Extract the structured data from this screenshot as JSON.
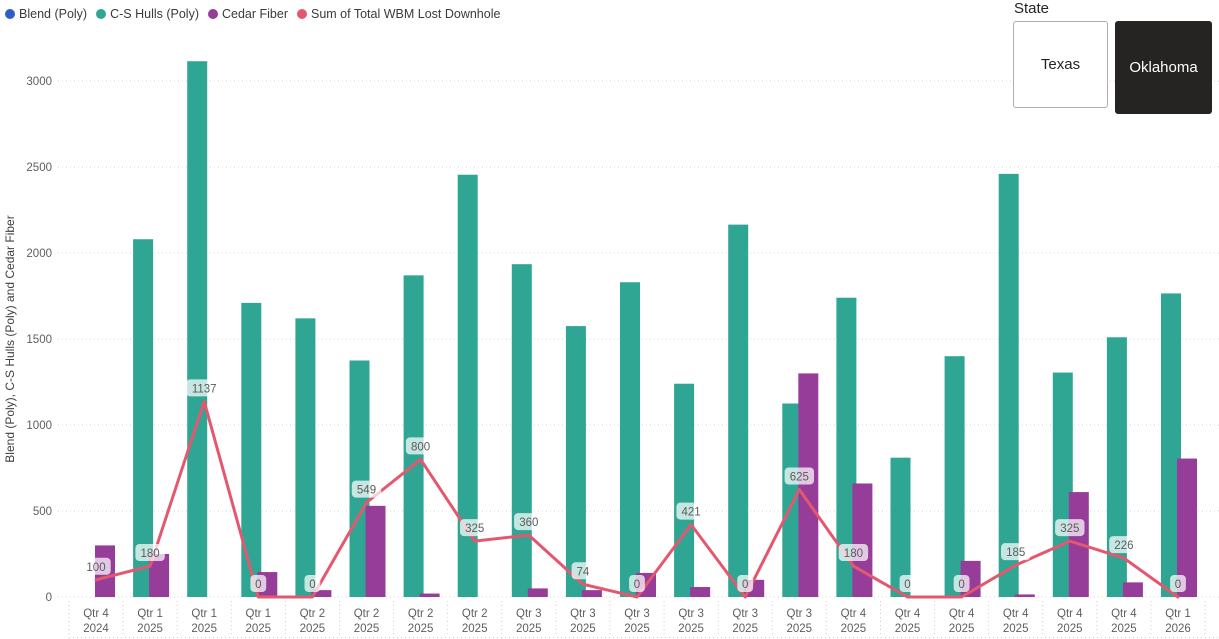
{
  "legend": {
    "items": [
      {
        "label": "Blend (Poly)",
        "color": "#2E5FC8"
      },
      {
        "label": "C-S Hulls (Poly)",
        "color": "#2FA694"
      },
      {
        "label": "Cedar Fiber",
        "color": "#963D99"
      },
      {
        "label": "Sum of Total WBM Lost Downhole",
        "color": "#E4586F"
      }
    ]
  },
  "slicer": {
    "title": "State",
    "options": [
      {
        "label": "Texas",
        "selected": false
      },
      {
        "label": "Oklahoma",
        "selected": true
      }
    ]
  },
  "chart_data": {
    "type": "bar",
    "subtype": "clustered-column-with-line",
    "title": "",
    "xlabel": "",
    "ylabel": "Blend (Poly), C-S Hulls (Poly) and Cedar Fiber",
    "ylim": [
      0,
      3000
    ],
    "yticks": [
      0,
      500,
      1000,
      1500,
      2000,
      2500,
      3000
    ],
    "grid": true,
    "legend_position": "top-left",
    "categories": [
      [
        "Qtr 4",
        "2024"
      ],
      [
        "Qtr 1",
        "2025"
      ],
      [
        "Qtr 1",
        "2025"
      ],
      [
        "Qtr 1",
        "2025"
      ],
      [
        "Qtr 2",
        "2025"
      ],
      [
        "Qtr 2",
        "2025"
      ],
      [
        "Qtr 2",
        "2025"
      ],
      [
        "Qtr 2",
        "2025"
      ],
      [
        "Qtr 3",
        "2025"
      ],
      [
        "Qtr 3",
        "2025"
      ],
      [
        "Qtr 3",
        "2025"
      ],
      [
        "Qtr 3",
        "2025"
      ],
      [
        "Qtr 3",
        "2025"
      ],
      [
        "Qtr 3",
        "2025"
      ],
      [
        "Qtr 4",
        "2025"
      ],
      [
        "Qtr 4",
        "2025"
      ],
      [
        "Qtr 4",
        "2025"
      ],
      [
        "Qtr 4",
        "2025"
      ],
      [
        "Qtr 4",
        "2025"
      ],
      [
        "Qtr 4",
        "2025"
      ],
      [
        "Qtr 1",
        "2026"
      ]
    ],
    "series": [
      {
        "name": "Blend (Poly)",
        "type": "bar",
        "color": "#2E5FC8",
        "values": [
          0,
          0,
          0,
          0,
          0,
          0,
          0,
          0,
          0,
          0,
          0,
          0,
          0,
          0,
          0,
          0,
          0,
          0,
          0,
          0,
          0
        ]
      },
      {
        "name": "C-S Hulls (Poly)",
        "type": "bar",
        "color": "#2FA694",
        "values": [
          0,
          2080,
          3115,
          1710,
          1620,
          1375,
          1870,
          2455,
          1935,
          1575,
          1830,
          1240,
          2165,
          1125,
          1740,
          810,
          1400,
          2460,
          1305,
          1510,
          1765
        ]
      },
      {
        "name": "Cedar Fiber",
        "type": "bar",
        "color": "#963D99",
        "values": [
          300,
          250,
          0,
          145,
          40,
          530,
          20,
          0,
          50,
          40,
          140,
          58,
          100,
          1300,
          660,
          0,
          210,
          15,
          610,
          85,
          805
        ]
      },
      {
        "name": "Sum of Total WBM Lost Downhole",
        "type": "line",
        "color": "#E4586F",
        "show_labels": true,
        "values": [
          100,
          180,
          1137,
          0,
          0,
          549,
          800,
          325,
          360,
          74,
          0,
          421,
          0,
          625,
          180,
          0,
          0,
          185,
          325,
          226,
          0
        ]
      }
    ]
  }
}
